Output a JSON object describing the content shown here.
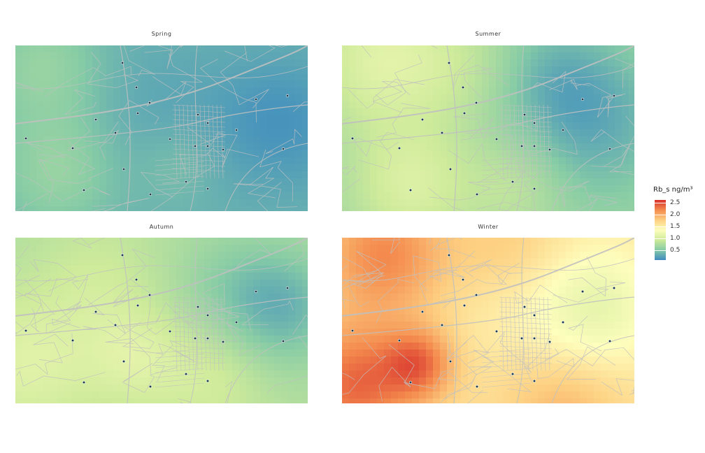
{
  "panels": [
    {
      "title": "Spring",
      "season": "spring"
    },
    {
      "title": "Summer",
      "season": "summer"
    },
    {
      "title": "Autumn",
      "season": "autumn"
    },
    {
      "title": "Winter",
      "season": "winter"
    }
  ],
  "legend": {
    "title": "Rb_s ng/m³",
    "ticks": [
      "2.5",
      "2.0",
      "1.5",
      "1.0",
      "0.5"
    ],
    "tick_values": [
      2.5,
      2.0,
      1.5,
      1.0,
      0.5
    ],
    "range": [
      0.3,
      2.7
    ],
    "colors": [
      "#3f8cbf",
      "#86cba6",
      "#cdea9a",
      "#fefebd",
      "#fdd082",
      "#f48b4e",
      "#d7312c"
    ]
  },
  "colors": {
    "roads": "#c0c0c0",
    "site_fill": "#1b3a4b",
    "site_outline": "#ffffff"
  }
}
